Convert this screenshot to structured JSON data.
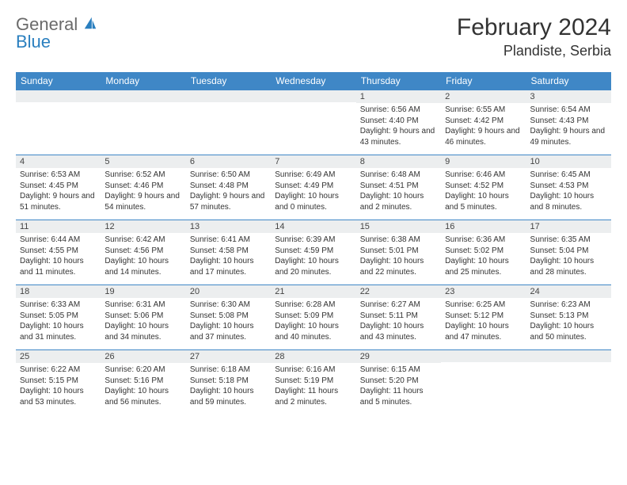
{
  "brand": {
    "general": "General",
    "blue": "Blue"
  },
  "title": "February 2024",
  "location": "Plandiste, Serbia",
  "colors": {
    "header_bg": "#3f87c6",
    "header_text": "#ffffff",
    "daynum_bg": "#eceeef",
    "border": "#3f87c6",
    "text": "#333333"
  },
  "day_headers": [
    "Sunday",
    "Monday",
    "Tuesday",
    "Wednesday",
    "Thursday",
    "Friday",
    "Saturday"
  ],
  "weeks": [
    [
      null,
      null,
      null,
      null,
      {
        "n": "1",
        "sunrise": "6:56 AM",
        "sunset": "4:40 PM",
        "daylight": "9 hours and 43 minutes."
      },
      {
        "n": "2",
        "sunrise": "6:55 AM",
        "sunset": "4:42 PM",
        "daylight": "9 hours and 46 minutes."
      },
      {
        "n": "3",
        "sunrise": "6:54 AM",
        "sunset": "4:43 PM",
        "daylight": "9 hours and 49 minutes."
      }
    ],
    [
      {
        "n": "4",
        "sunrise": "6:53 AM",
        "sunset": "4:45 PM",
        "daylight": "9 hours and 51 minutes."
      },
      {
        "n": "5",
        "sunrise": "6:52 AM",
        "sunset": "4:46 PM",
        "daylight": "9 hours and 54 minutes."
      },
      {
        "n": "6",
        "sunrise": "6:50 AM",
        "sunset": "4:48 PM",
        "daylight": "9 hours and 57 minutes."
      },
      {
        "n": "7",
        "sunrise": "6:49 AM",
        "sunset": "4:49 PM",
        "daylight": "10 hours and 0 minutes."
      },
      {
        "n": "8",
        "sunrise": "6:48 AM",
        "sunset": "4:51 PM",
        "daylight": "10 hours and 2 minutes."
      },
      {
        "n": "9",
        "sunrise": "6:46 AM",
        "sunset": "4:52 PM",
        "daylight": "10 hours and 5 minutes."
      },
      {
        "n": "10",
        "sunrise": "6:45 AM",
        "sunset": "4:53 PM",
        "daylight": "10 hours and 8 minutes."
      }
    ],
    [
      {
        "n": "11",
        "sunrise": "6:44 AM",
        "sunset": "4:55 PM",
        "daylight": "10 hours and 11 minutes."
      },
      {
        "n": "12",
        "sunrise": "6:42 AM",
        "sunset": "4:56 PM",
        "daylight": "10 hours and 14 minutes."
      },
      {
        "n": "13",
        "sunrise": "6:41 AM",
        "sunset": "4:58 PM",
        "daylight": "10 hours and 17 minutes."
      },
      {
        "n": "14",
        "sunrise": "6:39 AM",
        "sunset": "4:59 PM",
        "daylight": "10 hours and 20 minutes."
      },
      {
        "n": "15",
        "sunrise": "6:38 AM",
        "sunset": "5:01 PM",
        "daylight": "10 hours and 22 minutes."
      },
      {
        "n": "16",
        "sunrise": "6:36 AM",
        "sunset": "5:02 PM",
        "daylight": "10 hours and 25 minutes."
      },
      {
        "n": "17",
        "sunrise": "6:35 AM",
        "sunset": "5:04 PM",
        "daylight": "10 hours and 28 minutes."
      }
    ],
    [
      {
        "n": "18",
        "sunrise": "6:33 AM",
        "sunset": "5:05 PM",
        "daylight": "10 hours and 31 minutes."
      },
      {
        "n": "19",
        "sunrise": "6:31 AM",
        "sunset": "5:06 PM",
        "daylight": "10 hours and 34 minutes."
      },
      {
        "n": "20",
        "sunrise": "6:30 AM",
        "sunset": "5:08 PM",
        "daylight": "10 hours and 37 minutes."
      },
      {
        "n": "21",
        "sunrise": "6:28 AM",
        "sunset": "5:09 PM",
        "daylight": "10 hours and 40 minutes."
      },
      {
        "n": "22",
        "sunrise": "6:27 AM",
        "sunset": "5:11 PM",
        "daylight": "10 hours and 43 minutes."
      },
      {
        "n": "23",
        "sunrise": "6:25 AM",
        "sunset": "5:12 PM",
        "daylight": "10 hours and 47 minutes."
      },
      {
        "n": "24",
        "sunrise": "6:23 AM",
        "sunset": "5:13 PM",
        "daylight": "10 hours and 50 minutes."
      }
    ],
    [
      {
        "n": "25",
        "sunrise": "6:22 AM",
        "sunset": "5:15 PM",
        "daylight": "10 hours and 53 minutes."
      },
      {
        "n": "26",
        "sunrise": "6:20 AM",
        "sunset": "5:16 PM",
        "daylight": "10 hours and 56 minutes."
      },
      {
        "n": "27",
        "sunrise": "6:18 AM",
        "sunset": "5:18 PM",
        "daylight": "10 hours and 59 minutes."
      },
      {
        "n": "28",
        "sunrise": "6:16 AM",
        "sunset": "5:19 PM",
        "daylight": "11 hours and 2 minutes."
      },
      {
        "n": "29",
        "sunrise": "6:15 AM",
        "sunset": "5:20 PM",
        "daylight": "11 hours and 5 minutes."
      },
      null,
      null
    ]
  ],
  "labels": {
    "sunrise": "Sunrise:",
    "sunset": "Sunset:",
    "daylight": "Daylight:"
  }
}
